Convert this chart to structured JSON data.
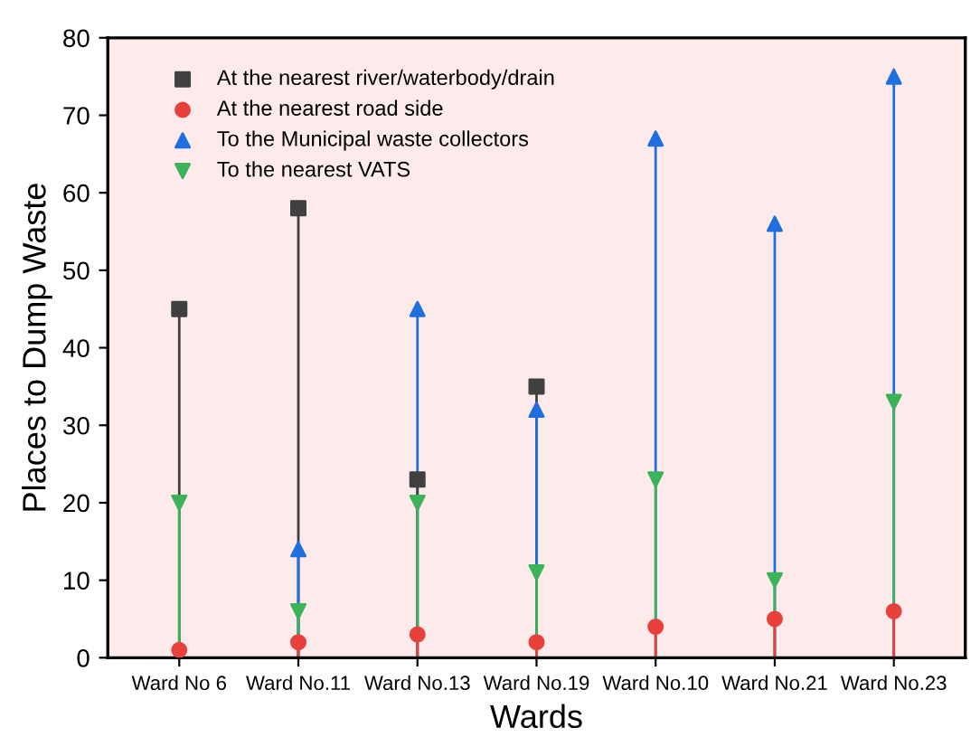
{
  "chart_data": {
    "type": "lollipop",
    "xlabel": "Wards",
    "ylabel": "Places to Dump Waste",
    "categories": [
      "Ward No 6",
      "Ward No.11",
      "Ward No.13",
      "Ward No.19",
      "Ward No.10",
      "Ward No.21",
      "Ward No.23"
    ],
    "series": [
      {
        "name": "At the nearest river/waterbody/drain",
        "color": "#404040",
        "marker": "square",
        "values": [
          45,
          58,
          23,
          35,
          null,
          null,
          null
        ]
      },
      {
        "name": "At the nearest road side",
        "color": "#e8413c",
        "marker": "circle",
        "values": [
          1,
          2,
          3,
          2,
          4,
          5,
          6
        ]
      },
      {
        "name": "To the Municipal waste collectors",
        "color": "#1f6fe0",
        "marker": "triangle",
        "values": [
          null,
          14,
          45,
          32,
          67,
          56,
          75
        ]
      },
      {
        "name": "To the nearest VATS",
        "color": "#3cb35a",
        "marker": "triangle_down",
        "values": [
          20,
          6,
          20,
          11,
          23,
          10,
          33
        ]
      }
    ],
    "ylim": [
      0,
      80
    ],
    "yticks": [
      0,
      10,
      20,
      30,
      40,
      50,
      60,
      70,
      80
    ],
    "legend": "top left"
  }
}
